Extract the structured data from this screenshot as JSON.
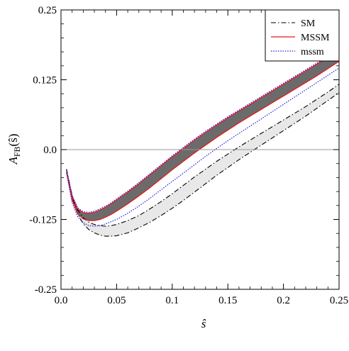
{
  "chart_data": {
    "type": "line",
    "xlabel": "ŝ",
    "ylabel": "A_FB(ŝ)",
    "xlim": [
      0.0,
      0.25
    ],
    "ylim": [
      -0.25,
      0.25
    ],
    "x_ticks": [
      0.0,
      0.05,
      0.1,
      0.15,
      0.2,
      0.25
    ],
    "x_tick_labels": [
      "0.0",
      "0.05",
      "0.1",
      "0.15",
      "0.2",
      "0.25"
    ],
    "y_ticks": [
      -0.25,
      -0.125,
      0.0,
      0.125,
      0.25
    ],
    "y_tick_labels": [
      "-0.25",
      "-0.125",
      "0.0",
      "0.125",
      "0.25"
    ],
    "grid": false,
    "zero_line": true,
    "legend_position": "top-right",
    "colors": {
      "SM": "#000000",
      "MSSM": "#e41a1c",
      "mssm": "#1f1fe0",
      "band_SM": "#e8e8e8",
      "band_MSSM": "#6b6b6b"
    },
    "x": [
      0.005,
      0.01,
      0.015,
      0.02,
      0.025,
      0.03,
      0.035,
      0.04,
      0.045,
      0.05,
      0.06,
      0.07,
      0.08,
      0.09,
      0.1,
      0.11,
      0.12,
      0.13,
      0.14,
      0.15,
      0.16,
      0.17,
      0.18,
      0.19,
      0.2,
      0.21,
      0.22,
      0.23,
      0.24,
      0.25
    ],
    "series": [
      {
        "name": "SM",
        "style": "dash-dot",
        "lower": [
          -0.035,
          -0.085,
          -0.115,
          -0.133,
          -0.143,
          -0.149,
          -0.153,
          -0.155,
          -0.155,
          -0.154,
          -0.149,
          -0.14,
          -0.13,
          -0.118,
          -0.105,
          -0.091,
          -0.076,
          -0.061,
          -0.046,
          -0.032,
          -0.018,
          -0.005,
          0.008,
          0.021,
          0.034,
          0.047,
          0.06,
          0.074,
          0.088,
          0.102
        ],
        "upper": [
          -0.035,
          -0.082,
          -0.108,
          -0.122,
          -0.13,
          -0.134,
          -0.136,
          -0.137,
          -0.136,
          -0.134,
          -0.127,
          -0.118,
          -0.106,
          -0.093,
          -0.079,
          -0.064,
          -0.049,
          -0.035,
          -0.021,
          -0.008,
          0.005,
          0.017,
          0.029,
          0.041,
          0.053,
          0.065,
          0.077,
          0.09,
          0.103,
          0.117
        ]
      },
      {
        "name": "MSSM",
        "style": "solid",
        "lower": [
          -0.04,
          -0.09,
          -0.115,
          -0.124,
          -0.127,
          -0.127,
          -0.125,
          -0.121,
          -0.116,
          -0.11,
          -0.097,
          -0.083,
          -0.068,
          -0.052,
          -0.036,
          -0.021,
          -0.006,
          0.008,
          0.022,
          0.035,
          0.048,
          0.06,
          0.072,
          0.084,
          0.096,
          0.108,
          0.12,
          0.132,
          0.145,
          0.158
        ],
        "upper": [
          -0.038,
          -0.084,
          -0.106,
          -0.113,
          -0.114,
          -0.112,
          -0.108,
          -0.103,
          -0.097,
          -0.09,
          -0.076,
          -0.061,
          -0.045,
          -0.029,
          -0.013,
          0.002,
          0.017,
          0.031,
          0.044,
          0.057,
          0.069,
          0.081,
          0.093,
          0.105,
          0.117,
          0.129,
          0.141,
          0.153,
          0.165,
          0.178
        ]
      },
      {
        "name": "mssm",
        "style": "dotted",
        "lower": [
          -0.042,
          -0.095,
          -0.12,
          -0.131,
          -0.136,
          -0.137,
          -0.136,
          -0.133,
          -0.129,
          -0.125,
          -0.114,
          -0.101,
          -0.087,
          -0.072,
          -0.057,
          -0.042,
          -0.027,
          -0.012,
          0.002,
          0.016,
          0.029,
          0.042,
          0.055,
          0.068,
          0.081,
          0.094,
          0.107,
          0.12,
          0.133,
          0.146
        ],
        "upper": [
          -0.037,
          -0.082,
          -0.104,
          -0.111,
          -0.112,
          -0.11,
          -0.106,
          -0.101,
          -0.095,
          -0.088,
          -0.074,
          -0.059,
          -0.043,
          -0.027,
          -0.011,
          0.004,
          0.019,
          0.033,
          0.046,
          0.059,
          0.071,
          0.083,
          0.095,
          0.107,
          0.119,
          0.131,
          0.143,
          0.155,
          0.167,
          0.18
        ]
      }
    ]
  }
}
